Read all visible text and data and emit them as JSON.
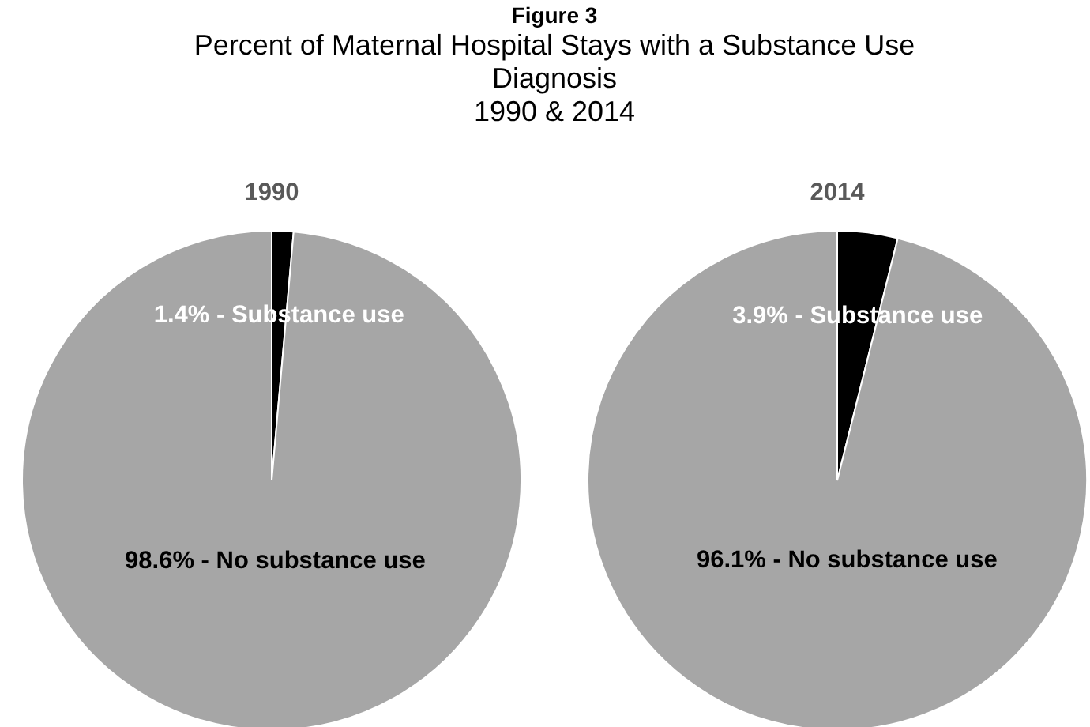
{
  "chart_data": [
    {
      "type": "other",
      "title": "Figure 3",
      "subtitle": "Percent of Maternal Hospital Stays with a Substance Use Diagnosis",
      "annotations": [
        "1990 & 2014"
      ]
    },
    {
      "type": "pie",
      "title": "1990",
      "categories": [
        "Substance use",
        "No substance use"
      ],
      "values": [
        1.4,
        98.6
      ],
      "colors": [
        "#000000",
        "#a6a6a6"
      ],
      "value_labels": [
        "1.4%",
        "98.6%"
      ]
    },
    {
      "type": "pie",
      "title": "2014",
      "categories": [
        "Substance use",
        "No substance use"
      ],
      "values": [
        3.9,
        96.1
      ],
      "colors": [
        "#000000",
        "#a6a6a6"
      ],
      "value_labels": [
        "3.9%",
        "96.1%"
      ]
    }
  ]
}
